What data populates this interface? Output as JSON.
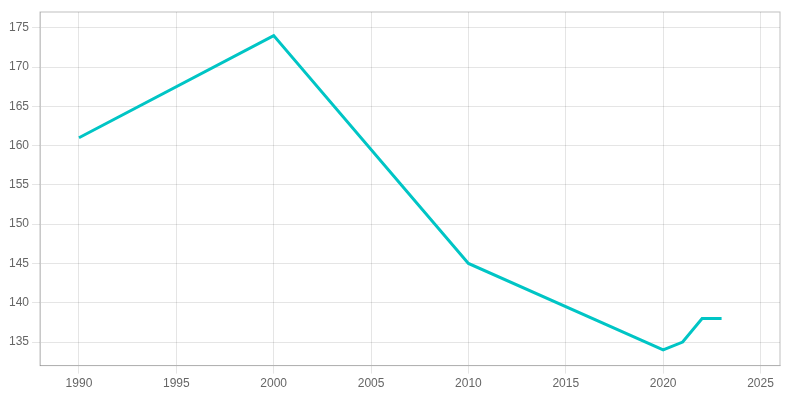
{
  "chart_data": {
    "type": "line",
    "x": [
      1990,
      2000,
      2010,
      2020,
      2021,
      2022,
      2023
    ],
    "values": [
      161,
      174,
      145,
      134,
      135,
      138,
      138
    ],
    "color": "#00C5C5",
    "xlim": [
      1988,
      2026
    ],
    "ylim": [
      132,
      177
    ],
    "xticks": [
      1990,
      1995,
      2000,
      2005,
      2010,
      2015,
      2020,
      2025
    ],
    "yticks": [
      135,
      140,
      145,
      150,
      155,
      160,
      165,
      170,
      175
    ],
    "grid": true
  }
}
